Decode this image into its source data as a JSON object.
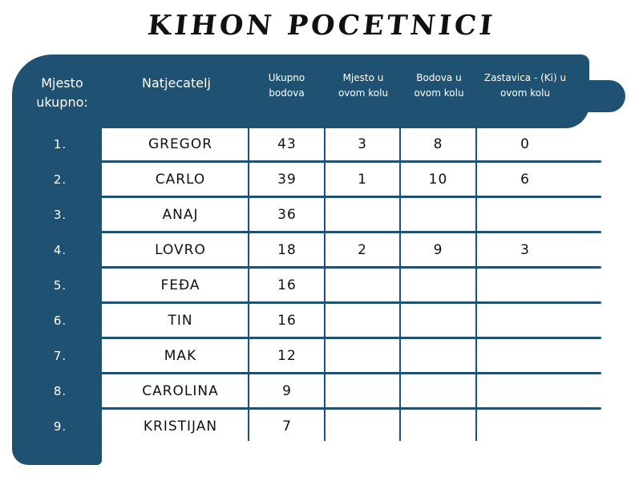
{
  "title": "KIHON POCETNICI",
  "colors": {
    "accent": "#1f5272"
  },
  "headers": [
    "Mjesto ukupno:",
    "Natjecatelj",
    "Ukupno bodova",
    "Mjesto u ovom kolu",
    "Bodova u ovom kolu",
    "Zastavica - (Ki) u ovom kolu"
  ],
  "rows": [
    {
      "rank": "1.",
      "name": "GREGOR",
      "total": "43",
      "place": "3",
      "points": "8",
      "flags": "0"
    },
    {
      "rank": "2.",
      "name": "CARLO",
      "total": "39",
      "place": "1",
      "points": "10",
      "flags": "6"
    },
    {
      "rank": "3.",
      "name": "ANAJ",
      "total": "36",
      "place": "",
      "points": "",
      "flags": ""
    },
    {
      "rank": "4.",
      "name": "LOVRO",
      "total": "18",
      "place": "2",
      "points": "9",
      "flags": "3"
    },
    {
      "rank": "5.",
      "name": "FEĐA",
      "total": "16",
      "place": "",
      "points": "",
      "flags": ""
    },
    {
      "rank": "6.",
      "name": "TIN",
      "total": "16",
      "place": "",
      "points": "",
      "flags": ""
    },
    {
      "rank": "7.",
      "name": "MAK",
      "total": "12",
      "place": "",
      "points": "",
      "flags": ""
    },
    {
      "rank": "8.",
      "name": "CAROLINA",
      "total": "9",
      "place": "",
      "points": "",
      "flags": ""
    },
    {
      "rank": "9.",
      "name": "KRISTIJAN",
      "total": "7",
      "place": "",
      "points": "",
      "flags": ""
    }
  ]
}
